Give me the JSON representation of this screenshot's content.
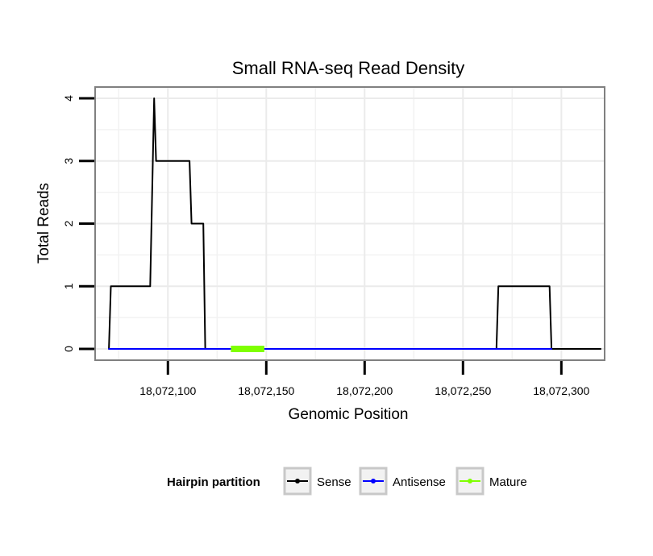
{
  "chart_data": {
    "type": "line",
    "title": "Small RNA-seq Read Density",
    "xlabel": "Genomic Position",
    "ylabel": "Total Reads",
    "xlim": [
      18072063,
      18072322
    ],
    "ylim": [
      -0.18,
      4.18
    ],
    "x_ticks": [
      18072100,
      18072150,
      18072200,
      18072250,
      18072300
    ],
    "x_tick_labels": [
      "18,072,100",
      "18,072,150",
      "18,072,200",
      "18,072,250",
      "18,072,300"
    ],
    "y_ticks": [
      0,
      1,
      2,
      3,
      4
    ],
    "y_tick_labels": [
      "0",
      "1",
      "2",
      "3",
      "4"
    ],
    "grid": true,
    "series": [
      {
        "name": "Sense",
        "color": "#000000",
        "points": [
          [
            18072070,
            0
          ],
          [
            18072071,
            1
          ],
          [
            18072091,
            1
          ],
          [
            18072093,
            4
          ],
          [
            18072094,
            3
          ],
          [
            18072111,
            3
          ],
          [
            18072112,
            2
          ],
          [
            18072118,
            2
          ],
          [
            18072119,
            0
          ],
          [
            18072267,
            0
          ],
          [
            18072268,
            1
          ],
          [
            18072294,
            1
          ],
          [
            18072295,
            0
          ],
          [
            18072320,
            0
          ]
        ]
      },
      {
        "name": "Antisense",
        "color": "#0000ff",
        "points": [
          [
            18072070,
            0
          ],
          [
            18072119,
            0
          ],
          [
            18072267,
            0
          ],
          [
            18072295,
            0
          ]
        ]
      },
      {
        "name": "Mature",
        "color": "#7fff00",
        "points": [
          [
            18072132,
            0
          ],
          [
            18072149,
            0
          ]
        ]
      }
    ],
    "legend": {
      "title": "Hairpin partition",
      "position": "bottom",
      "entries": [
        {
          "label": "Sense",
          "color": "#000000"
        },
        {
          "label": "Antisense",
          "color": "#0000ff"
        },
        {
          "label": "Mature",
          "color": "#7fff00"
        }
      ]
    }
  }
}
